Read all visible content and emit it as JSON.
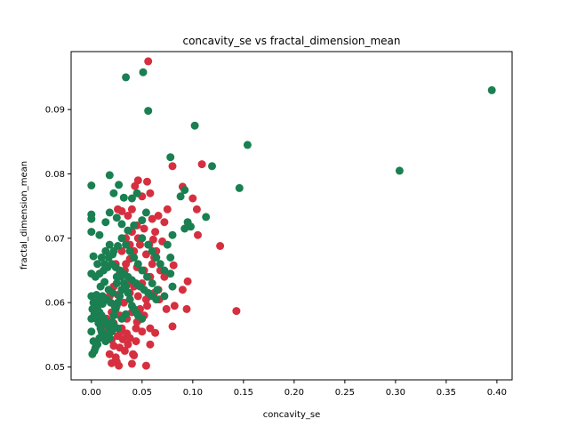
{
  "chart_data": {
    "type": "scatter",
    "title": "concavity_se vs fractal_dimension_mean",
    "xlabel": "concavity_se",
    "ylabel": "fractal_dimension_mean",
    "xlim": [
      -0.02,
      0.415
    ],
    "ylim": [
      0.048,
      0.099
    ],
    "xticks": [
      0.0,
      0.05,
      0.1,
      0.15,
      0.2,
      0.25,
      0.3,
      0.35,
      0.4
    ],
    "xtick_labels": [
      "0.00",
      "0.05",
      "0.10",
      "0.15",
      "0.20",
      "0.25",
      "0.30",
      "0.35",
      "0.40"
    ],
    "yticks": [
      0.05,
      0.06,
      0.07,
      0.08,
      0.09
    ],
    "ytick_labels": [
      "0.05",
      "0.06",
      "0.07",
      "0.08",
      "0.09"
    ],
    "grid": false,
    "legend": "none",
    "series": [
      {
        "color": "#d62f3f",
        "points": [
          [
            0.056,
            0.0975
          ],
          [
            0.08,
            0.0812
          ],
          [
            0.109,
            0.0815
          ],
          [
            0.09,
            0.078
          ],
          [
            0.1,
            0.0762
          ],
          [
            0.104,
            0.0745
          ],
          [
            0.105,
            0.0705
          ],
          [
            0.127,
            0.0688
          ],
          [
            0.143,
            0.0587
          ],
          [
            0.095,
            0.0633
          ],
          [
            0.09,
            0.062
          ],
          [
            0.081,
            0.0658
          ],
          [
            0.082,
            0.0595
          ],
          [
            0.094,
            0.059
          ],
          [
            0.074,
            0.059
          ],
          [
            0.08,
            0.0563
          ],
          [
            0.063,
            0.0553
          ],
          [
            0.058,
            0.0535
          ],
          [
            0.054,
            0.0502
          ],
          [
            0.042,
            0.0518
          ],
          [
            0.04,
            0.0505
          ],
          [
            0.027,
            0.0502
          ],
          [
            0.025,
            0.0508
          ],
          [
            0.02,
            0.0506
          ],
          [
            0.022,
            0.0533
          ],
          [
            0.031,
            0.0543
          ],
          [
            0.035,
            0.0552
          ],
          [
            0.044,
            0.056
          ],
          [
            0.048,
            0.0574
          ],
          [
            0.052,
            0.058
          ],
          [
            0.046,
            0.079
          ],
          [
            0.055,
            0.0788
          ],
          [
            0.043,
            0.0781
          ],
          [
            0.05,
            0.0765
          ],
          [
            0.058,
            0.077
          ],
          [
            0.04,
            0.0745
          ],
          [
            0.036,
            0.0735
          ],
          [
            0.026,
            0.0745
          ],
          [
            0.03,
            0.0742
          ],
          [
            0.045,
            0.072
          ],
          [
            0.052,
            0.0715
          ],
          [
            0.06,
            0.073
          ],
          [
            0.066,
            0.0735
          ],
          [
            0.072,
            0.0725
          ],
          [
            0.063,
            0.071
          ],
          [
            0.075,
            0.0745
          ],
          [
            0.07,
            0.0695
          ],
          [
            0.061,
            0.0698
          ],
          [
            0.057,
            0.069
          ],
          [
            0.064,
            0.068
          ],
          [
            0.048,
            0.069
          ],
          [
            0.042,
            0.068
          ],
          [
            0.038,
            0.0668
          ],
          [
            0.034,
            0.066
          ],
          [
            0.045,
            0.0655
          ],
          [
            0.052,
            0.065
          ],
          [
            0.06,
            0.066
          ],
          [
            0.068,
            0.065
          ],
          [
            0.072,
            0.064
          ],
          [
            0.058,
            0.064
          ],
          [
            0.05,
            0.063
          ],
          [
            0.042,
            0.0625
          ],
          [
            0.038,
            0.0615
          ],
          [
            0.046,
            0.061
          ],
          [
            0.054,
            0.0605
          ],
          [
            0.062,
            0.0615
          ],
          [
            0.066,
            0.062
          ],
          [
            0.055,
            0.0595
          ],
          [
            0.048,
            0.059
          ],
          [
            0.04,
            0.0585
          ],
          [
            0.035,
            0.0575
          ],
          [
            0.03,
            0.056
          ],
          [
            0.026,
            0.0548
          ],
          [
            0.038,
            0.0545
          ],
          [
            0.044,
            0.054
          ],
          [
            0.028,
            0.053
          ],
          [
            0.018,
            0.052
          ],
          [
            0.024,
            0.0515
          ],
          [
            0.033,
            0.0525
          ],
          [
            0.02,
            0.0542
          ],
          [
            0.016,
            0.0555
          ],
          [
            0.022,
            0.0568
          ],
          [
            0.028,
            0.058
          ],
          [
            0.032,
            0.06
          ],
          [
            0.036,
            0.063
          ],
          [
            0.028,
            0.0645
          ],
          [
            0.024,
            0.066
          ],
          [
            0.03,
            0.068
          ],
          [
            0.034,
            0.07
          ],
          [
            0.04,
            0.071
          ],
          [
            0.046,
            0.07
          ],
          [
            0.054,
            0.0675
          ],
          [
            0.062,
            0.067
          ],
          [
            0.067,
            0.0605
          ],
          [
            0.058,
            0.056
          ],
          [
            0.05,
            0.0555
          ],
          [
            0.045,
            0.057
          ],
          [
            0.036,
            0.0535
          ],
          [
            0.041,
            0.052
          ],
          [
            0.029,
            0.0555
          ],
          [
            0.025,
            0.0595
          ],
          [
            0.02,
            0.0585
          ],
          [
            0.015,
            0.0575
          ],
          [
            0.012,
            0.0565
          ],
          [
            0.018,
            0.061
          ],
          [
            0.022,
            0.0625
          ],
          [
            0.026,
            0.0612
          ],
          [
            0.03,
            0.062
          ],
          [
            0.033,
            0.065
          ],
          [
            0.038,
            0.069
          ]
        ]
      },
      {
        "color": "#1a7f51",
        "points": [
          [
            0.395,
            0.093
          ],
          [
            0.304,
            0.0805
          ],
          [
            0.154,
            0.0845
          ],
          [
            0.146,
            0.0778
          ],
          [
            0.119,
            0.0812
          ],
          [
            0.113,
            0.0733
          ],
          [
            0.102,
            0.0875
          ],
          [
            0.078,
            0.0826
          ],
          [
            0.092,
            0.0775
          ],
          [
            0.088,
            0.0765
          ],
          [
            0.095,
            0.0725
          ],
          [
            0.098,
            0.0718
          ],
          [
            0.092,
            0.0715
          ],
          [
            0.08,
            0.0705
          ],
          [
            0.056,
            0.0898
          ],
          [
            0.051,
            0.0958
          ],
          [
            0.034,
            0.095
          ],
          [
            0.0,
            0.0782
          ],
          [
            0.018,
            0.0798
          ],
          [
            0.027,
            0.0783
          ],
          [
            0.022,
            0.077
          ],
          [
            0.032,
            0.0763
          ],
          [
            0.04,
            0.0762
          ],
          [
            0.045,
            0.077
          ],
          [
            0.0,
            0.0737
          ],
          [
            0.0,
            0.073
          ],
          [
            0.0,
            0.071
          ],
          [
            0.008,
            0.0705
          ],
          [
            0.014,
            0.0725
          ],
          [
            0.018,
            0.074
          ],
          [
            0.025,
            0.0732
          ],
          [
            0.03,
            0.0722
          ],
          [
            0.036,
            0.0712
          ],
          [
            0.042,
            0.072
          ],
          [
            0.05,
            0.0728
          ],
          [
            0.054,
            0.074
          ],
          [
            0.05,
            0.07
          ],
          [
            0.056,
            0.069
          ],
          [
            0.06,
            0.068
          ],
          [
            0.064,
            0.067
          ],
          [
            0.068,
            0.066
          ],
          [
            0.072,
            0.065
          ],
          [
            0.078,
            0.067
          ],
          [
            0.075,
            0.069
          ],
          [
            0.078,
            0.0645
          ],
          [
            0.08,
            0.0625
          ],
          [
            0.072,
            0.061
          ],
          [
            0.065,
            0.062
          ],
          [
            0.06,
            0.063
          ],
          [
            0.055,
            0.064
          ],
          [
            0.05,
            0.065
          ],
          [
            0.046,
            0.066
          ],
          [
            0.042,
            0.067
          ],
          [
            0.038,
            0.068
          ],
          [
            0.034,
            0.069
          ],
          [
            0.03,
            0.07
          ],
          [
            0.026,
            0.0688
          ],
          [
            0.022,
            0.068
          ],
          [
            0.018,
            0.069
          ],
          [
            0.014,
            0.068
          ],
          [
            0.01,
            0.067
          ],
          [
            0.006,
            0.066
          ],
          [
            0.002,
            0.0672
          ],
          [
            0.0,
            0.0645
          ],
          [
            0.004,
            0.064
          ],
          [
            0.008,
            0.0645
          ],
          [
            0.012,
            0.065
          ],
          [
            0.016,
            0.0655
          ],
          [
            0.02,
            0.066
          ],
          [
            0.024,
            0.0655
          ],
          [
            0.028,
            0.065
          ],
          [
            0.032,
            0.0645
          ],
          [
            0.036,
            0.064
          ],
          [
            0.04,
            0.0635
          ],
          [
            0.044,
            0.063
          ],
          [
            0.048,
            0.0625
          ],
          [
            0.052,
            0.062
          ],
          [
            0.056,
            0.0615
          ],
          [
            0.06,
            0.061
          ],
          [
            0.064,
            0.0605
          ],
          [
            0.0,
            0.061
          ],
          [
            0.002,
            0.06
          ],
          [
            0.004,
            0.0595
          ],
          [
            0.006,
            0.059
          ],
          [
            0.008,
            0.0585
          ],
          [
            0.01,
            0.058
          ],
          [
            0.012,
            0.0575
          ],
          [
            0.014,
            0.057
          ],
          [
            0.016,
            0.0565
          ],
          [
            0.018,
            0.056
          ],
          [
            0.02,
            0.057
          ],
          [
            0.022,
            0.058
          ],
          [
            0.024,
            0.059
          ],
          [
            0.026,
            0.06
          ],
          [
            0.028,
            0.061
          ],
          [
            0.03,
            0.062
          ],
          [
            0.032,
            0.063
          ],
          [
            0.034,
            0.0625
          ],
          [
            0.036,
            0.0615
          ],
          [
            0.038,
            0.0605
          ],
          [
            0.04,
            0.0595
          ],
          [
            0.042,
            0.059
          ],
          [
            0.044,
            0.0585
          ],
          [
            0.046,
            0.058
          ],
          [
            0.05,
            0.0575
          ],
          [
            0.0,
            0.0575
          ],
          [
            0.0,
            0.0555
          ],
          [
            0.002,
            0.054
          ],
          [
            0.004,
            0.053
          ],
          [
            0.001,
            0.052
          ],
          [
            0.003,
            0.0525
          ],
          [
            0.006,
            0.0535
          ],
          [
            0.008,
            0.0545
          ],
          [
            0.01,
            0.0555
          ],
          [
            0.012,
            0.0548
          ],
          [
            0.014,
            0.054
          ],
          [
            0.016,
            0.055
          ],
          [
            0.018,
            0.0545
          ],
          [
            0.02,
            0.0555
          ],
          [
            0.022,
            0.0565
          ],
          [
            0.026,
            0.056
          ],
          [
            0.03,
            0.0575
          ],
          [
            0.034,
            0.0582
          ],
          [
            0.005,
            0.0612
          ],
          [
            0.009,
            0.0625
          ],
          [
            0.013,
            0.0632
          ],
          [
            0.017,
            0.062
          ],
          [
            0.021,
            0.0615
          ],
          [
            0.025,
            0.063
          ],
          [
            0.029,
            0.064
          ],
          [
            0.007,
            0.0605
          ],
          [
            0.011,
            0.0598
          ],
          [
            0.015,
            0.0605
          ],
          [
            0.019,
            0.06
          ],
          [
            0.023,
            0.0595
          ],
          [
            0.001,
            0.059
          ],
          [
            0.003,
            0.0582
          ],
          [
            0.005,
            0.0575
          ],
          [
            0.007,
            0.0568
          ],
          [
            0.009,
            0.056
          ],
          [
            0.011,
            0.061
          ],
          [
            0.013,
            0.066
          ],
          [
            0.017,
            0.067
          ],
          [
            0.021,
            0.0675
          ],
          [
            0.025,
            0.064
          ]
        ]
      }
    ]
  }
}
